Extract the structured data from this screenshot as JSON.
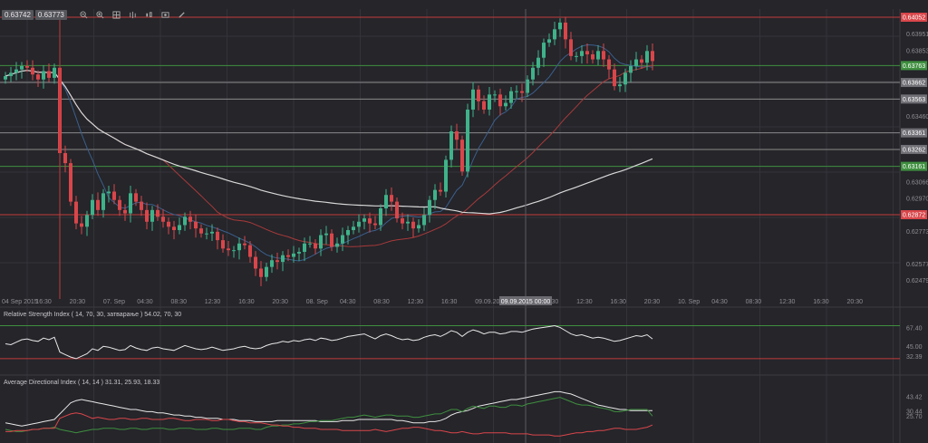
{
  "toolbar": {
    "price_left": "0.63742",
    "price_right": "0.63773",
    "icons": [
      "zoom-out-icon",
      "zoom-in-icon",
      "grid-icon",
      "bar-chart-icon",
      "candles-icon",
      "screenshot-icon",
      "pencil-icon"
    ]
  },
  "colors": {
    "background": "#25252a",
    "grid": "#33333a",
    "up": "#3fb28a",
    "down": "#d9464a",
    "sma_fast": "#3b5f8c",
    "sma_mid": "#a83a3a",
    "sma_slow": "#d8d8d8",
    "res_line": "#c23b3b",
    "sup_line": "#3f8f3f",
    "grey_line": "#8a8a8a"
  },
  "chart_data": [
    {
      "type": "candlestick",
      "y_ticks": [
        "0.63951",
        "0.63853",
        "0.63460",
        "0.63066",
        "0.62970",
        "0.62773",
        "0.62577",
        "0.62479"
      ],
      "x_ticks": [
        "04 Sep 2015",
        "16:30",
        "20:30",
        "07. Sep",
        "04:30",
        "08:30",
        "12:30",
        "16:30",
        "20:30",
        "08. Sep",
        "04:30",
        "08:30",
        "12:30",
        "16:30",
        "09.09.2015 00:00",
        "04:30",
        "08:30",
        "12:30",
        "16:30",
        "20:30",
        "10. Sep",
        "04:30",
        "08:30",
        "12:30",
        "16:30",
        "20:30"
      ],
      "levels": [
        {
          "label": "0.64052",
          "kind": "resistance"
        },
        {
          "label": "0.63763",
          "kind": "support"
        },
        {
          "label": "0.63662",
          "kind": "neutral"
        },
        {
          "label": "0.63563",
          "kind": "neutral"
        },
        {
          "label": "0.63361",
          "kind": "neutral"
        },
        {
          "label": "0.63262",
          "kind": "neutral"
        },
        {
          "label": "0.63161",
          "kind": "support"
        },
        {
          "label": "0.62872",
          "kind": "resistance"
        }
      ],
      "crosshair_label": "09.09.2015 00:00",
      "closes": [
        0.637,
        0.6372,
        0.6374,
        0.6376,
        0.6375,
        0.6371,
        0.6368,
        0.6373,
        0.6369,
        0.6375,
        0.6324,
        0.6318,
        0.6295,
        0.6282,
        0.628,
        0.6287,
        0.6296,
        0.629,
        0.63,
        0.6301,
        0.6296,
        0.629,
        0.6288,
        0.63,
        0.6295,
        0.629,
        0.6283,
        0.629,
        0.6286,
        0.6283,
        0.628,
        0.6278,
        0.6281,
        0.6286,
        0.6283,
        0.6279,
        0.6276,
        0.6276,
        0.6277,
        0.6272,
        0.6267,
        0.6266,
        0.6266,
        0.627,
        0.6269,
        0.6262,
        0.6255,
        0.625,
        0.6256,
        0.626,
        0.6259,
        0.6263,
        0.6262,
        0.6264,
        0.6265,
        0.627,
        0.627,
        0.6267,
        0.6275,
        0.6276,
        0.6268,
        0.627,
        0.6275,
        0.6278,
        0.628,
        0.6283,
        0.6285,
        0.6282,
        0.6281,
        0.6291,
        0.6299,
        0.6295,
        0.6285,
        0.6282,
        0.6283,
        0.6279,
        0.6281,
        0.6287,
        0.6296,
        0.6302,
        0.6301,
        0.632,
        0.6337,
        0.6332,
        0.6313,
        0.635,
        0.6362,
        0.6355,
        0.635,
        0.6359,
        0.6359,
        0.6352,
        0.6354,
        0.6361,
        0.6361,
        0.636,
        0.6368,
        0.6375,
        0.6381,
        0.639,
        0.6392,
        0.6398,
        0.6402,
        0.6392,
        0.6382,
        0.6382,
        0.6385,
        0.6383,
        0.638,
        0.6385,
        0.638,
        0.6374,
        0.6364,
        0.6365,
        0.6372,
        0.6376,
        0.638,
        0.6378,
        0.6385,
        0.6379
      ]
    },
    {
      "type": "line",
      "title": "Relative Strength Index ( 14, 70, 30, затварање ) 54.02, 70, 30",
      "y_ticks": [
        "67.40",
        "45.00",
        "32.39"
      ],
      "series": [
        {
          "values": [
            48,
            47,
            50,
            53,
            54,
            52,
            51,
            55,
            53,
            56,
            38,
            35,
            32,
            30,
            33,
            36,
            42,
            40,
            45,
            44,
            42,
            40,
            41,
            46,
            43,
            41,
            40,
            43,
            44,
            42,
            41,
            40,
            43,
            46,
            44,
            42,
            41,
            42,
            44,
            42,
            40,
            41,
            42,
            44,
            45,
            43,
            42,
            43,
            46,
            48,
            49,
            51,
            50,
            52,
            51,
            53,
            54,
            52,
            55,
            54,
            52,
            53,
            55,
            57,
            58,
            59,
            60,
            57,
            54,
            58,
            60,
            58,
            55,
            53,
            54,
            52,
            53,
            56,
            58,
            59,
            57,
            60,
            64,
            62,
            57,
            62,
            65,
            63,
            60,
            62,
            62,
            60,
            61,
            63,
            63,
            62,
            64,
            66,
            67,
            68,
            69,
            70,
            68,
            64,
            60,
            58,
            59,
            57,
            55,
            56,
            55,
            53,
            51,
            52,
            54,
            56,
            58,
            57,
            59,
            54
          ]
        }
      ]
    },
    {
      "type": "line",
      "title": "Average Directional Index ( 14, 14 ) 31.31, 25.93, 18.33",
      "y_ticks": [
        "43.42",
        "30.44",
        "25.70"
      ],
      "series": [
        {
          "values": [
            20,
            19,
            18,
            17,
            18,
            19,
            20,
            21,
            22,
            23,
            28,
            33,
            38,
            40,
            41,
            40,
            39,
            38,
            37,
            36,
            35,
            34,
            33,
            32,
            32,
            31,
            30,
            30,
            29,
            29,
            28,
            27,
            27,
            26,
            26,
            25,
            25,
            24,
            24,
            24,
            23,
            23,
            23,
            22,
            22,
            22,
            21,
            21,
            21,
            21,
            22,
            22,
            22,
            22,
            22,
            22,
            22,
            22,
            21,
            21,
            21,
            21,
            22,
            22,
            22,
            23,
            23,
            23,
            23,
            23,
            23,
            23,
            22,
            22,
            21,
            20,
            20,
            20,
            21,
            21,
            22,
            24,
            27,
            29,
            30,
            31,
            33,
            35,
            36,
            37,
            38,
            39,
            40,
            41,
            41,
            42,
            43,
            44,
            45,
            46,
            47,
            48,
            48,
            47,
            46,
            44,
            42,
            40,
            38,
            36,
            35,
            34,
            33,
            32,
            32,
            31,
            31,
            31,
            31,
            31
          ]
        },
        {
          "values": [
            14,
            13,
            12,
            12,
            13,
            14,
            14,
            15,
            15,
            16,
            14,
            13,
            12,
            11,
            12,
            13,
            14,
            14,
            15,
            15,
            15,
            14,
            14,
            15,
            15,
            14,
            14,
            15,
            15,
            15,
            14,
            14,
            15,
            15,
            15,
            14,
            14,
            14,
            15,
            15,
            14,
            14,
            14,
            15,
            15,
            15,
            14,
            14,
            16,
            17,
            17,
            18,
            18,
            19,
            19,
            20,
            21,
            21,
            22,
            22,
            22,
            23,
            24,
            25,
            25,
            26,
            27,
            26,
            25,
            26,
            27,
            27,
            26,
            26,
            26,
            25,
            25,
            26,
            27,
            28,
            28,
            30,
            32,
            32,
            30,
            33,
            35,
            34,
            33,
            35,
            35,
            34,
            34,
            36,
            36,
            35,
            37,
            38,
            39,
            40,
            41,
            42,
            43,
            41,
            39,
            37,
            36,
            36,
            35,
            34,
            33,
            32,
            30,
            30,
            31,
            32,
            32,
            32,
            32,
            26
          ]
        },
        {
          "values": [
            12,
            12,
            13,
            13,
            13,
            14,
            14,
            15,
            15,
            15,
            24,
            26,
            28,
            29,
            28,
            26,
            24,
            25,
            24,
            23,
            23,
            24,
            24,
            23,
            23,
            24,
            24,
            23,
            23,
            23,
            24,
            24,
            23,
            22,
            22,
            23,
            23,
            23,
            22,
            22,
            23,
            23,
            22,
            21,
            21,
            20,
            20,
            20,
            19,
            18,
            18,
            17,
            17,
            16,
            16,
            15,
            15,
            15,
            14,
            14,
            14,
            14,
            13,
            13,
            13,
            13,
            13,
            13,
            14,
            13,
            12,
            13,
            14,
            15,
            15,
            16,
            16,
            15,
            14,
            13,
            13,
            12,
            11,
            11,
            12,
            11,
            10,
            10,
            11,
            11,
            11,
            11,
            11,
            10,
            10,
            10,
            10,
            9,
            9,
            9,
            9,
            8,
            8,
            9,
            10,
            11,
            11,
            12,
            12,
            13,
            13,
            14,
            15,
            15,
            14,
            14,
            14,
            15,
            16,
            18
          ]
        }
      ]
    }
  ]
}
